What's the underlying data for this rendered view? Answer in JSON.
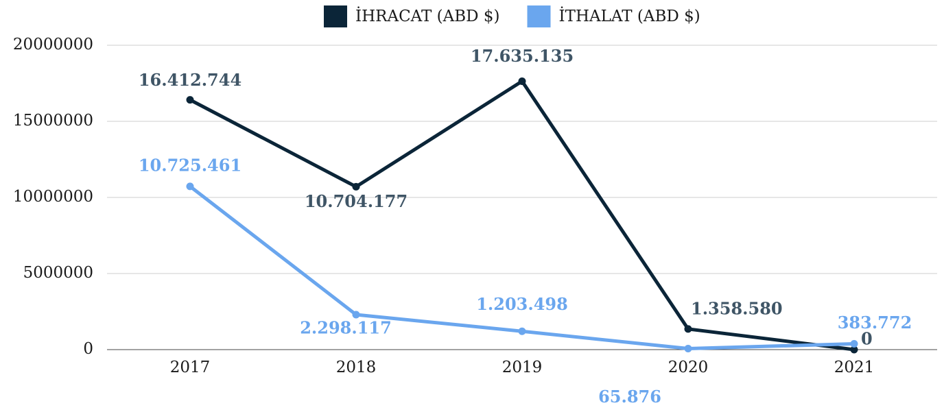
{
  "chart_data": {
    "type": "line",
    "categories": [
      "2017",
      "2018",
      "2019",
      "2020",
      "2021"
    ],
    "series": [
      {
        "name": "İHRACAT (ABD $)",
        "color": "#0b2538",
        "values": [
          16412744,
          10704177,
          17635135,
          1358580,
          0
        ],
        "value_labels": [
          "16.412.744",
          "10.704.177",
          "17.635.135",
          "1.358.580",
          "0"
        ]
      },
      {
        "name": "İTHALAT (ABD $)",
        "color": "#6aa6ee",
        "values": [
          10725461,
          2298117,
          1203498,
          65876,
          383772
        ],
        "value_labels": [
          "10.725.461",
          "2.298.117",
          "1.203.498",
          "65.876",
          "383.772"
        ]
      }
    ],
    "ylim": [
      0,
      20000000
    ],
    "yticks": [
      0,
      5000000,
      10000000,
      15000000,
      20000000
    ],
    "grid": true,
    "legend": "top"
  }
}
